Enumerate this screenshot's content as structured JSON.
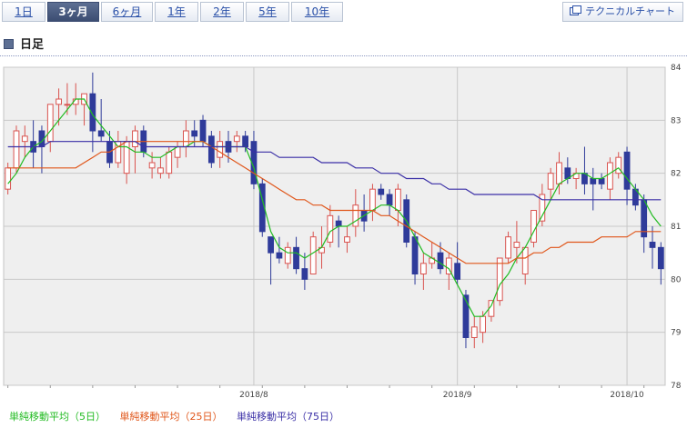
{
  "tabs": [
    {
      "label": "1日",
      "active": false
    },
    {
      "label": "3ヶ月",
      "active": true
    },
    {
      "label": "6ヶ月",
      "active": false
    },
    {
      "label": "1年",
      "active": false
    },
    {
      "label": "2年",
      "active": false
    },
    {
      "label": "5年",
      "active": false
    },
    {
      "label": "10年",
      "active": false
    }
  ],
  "technical_chart_button": "テクニカルチャート",
  "section_title": "日足",
  "legend": {
    "ma5": "単純移動平均（5日）",
    "ma25": "単純移動平均（25日）",
    "ma75": "単純移動平均（75日）"
  },
  "colors": {
    "up": "#d9534f",
    "down": "#2f3b9a",
    "ma5": "#22bb22",
    "ma25": "#e0561a",
    "ma75": "#3a2fa6",
    "active_tab": "#4a5a80",
    "plot_bg": "#efefef"
  },
  "chart_data": {
    "type": "candlestick",
    "title": "",
    "xlabel": "",
    "ylabel": "",
    "ylim": [
      78,
      84
    ],
    "yticks": [
      78,
      79,
      80,
      81,
      82,
      83,
      84
    ],
    "xtick_labels": [
      {
        "label": "2018/8",
        "index": 29
      },
      {
        "label": "2018/9",
        "index": 53
      },
      {
        "label": "2018/10",
        "index": 73
      }
    ],
    "ohlc": [
      [
        81.7,
        82.2,
        81.6,
        82.1
      ],
      [
        82.1,
        82.9,
        82.0,
        82.8
      ],
      [
        82.6,
        82.9,
        82.3,
        82.7
      ],
      [
        82.6,
        83.0,
        82.1,
        82.4
      ],
      [
        82.8,
        82.9,
        82.0,
        82.5
      ],
      [
        82.6,
        83.3,
        82.4,
        83.3
      ],
      [
        83.3,
        83.6,
        82.9,
        83.4
      ],
      [
        83.3,
        83.7,
        83.1,
        83.3
      ],
      [
        83.3,
        83.7,
        83.1,
        83.4
      ],
      [
        83.3,
        83.5,
        82.9,
        83.5
      ],
      [
        83.5,
        83.9,
        82.4,
        82.8
      ],
      [
        82.8,
        83.4,
        82.6,
        82.7
      ],
      [
        82.6,
        82.8,
        82.1,
        82.2
      ],
      [
        82.2,
        82.8,
        82.1,
        82.6
      ],
      [
        82.0,
        82.7,
        81.8,
        82.6
      ],
      [
        82.5,
        82.9,
        82.0,
        82.8
      ],
      [
        82.8,
        82.9,
        82.3,
        82.4
      ],
      [
        82.1,
        82.4,
        81.9,
        82.2
      ],
      [
        82.0,
        82.3,
        81.9,
        82.1
      ],
      [
        82.0,
        82.5,
        81.9,
        82.4
      ],
      [
        82.3,
        82.6,
        82.1,
        82.5
      ],
      [
        82.5,
        83.0,
        82.3,
        82.8
      ],
      [
        82.8,
        83.0,
        82.5,
        82.7
      ],
      [
        83.0,
        83.1,
        82.5,
        82.6
      ],
      [
        82.7,
        82.8,
        82.1,
        82.2
      ],
      [
        82.3,
        82.8,
        82.1,
        82.6
      ],
      [
        82.6,
        82.8,
        82.2,
        82.4
      ],
      [
        82.6,
        82.8,
        82.4,
        82.7
      ],
      [
        82.7,
        82.8,
        82.4,
        82.5
      ],
      [
        82.6,
        82.8,
        81.7,
        81.8
      ],
      [
        81.8,
        81.9,
        80.8,
        80.9
      ],
      [
        80.8,
        80.8,
        79.9,
        80.5
      ],
      [
        80.5,
        80.8,
        80.3,
        80.4
      ],
      [
        80.3,
        80.7,
        80.2,
        80.6
      ],
      [
        80.6,
        80.8,
        80.1,
        80.2
      ],
      [
        80.2,
        80.5,
        79.8,
        80.0
      ],
      [
        80.1,
        80.9,
        80.1,
        80.8
      ],
      [
        80.5,
        81.0,
        80.2,
        80.6
      ],
      [
        80.7,
        81.4,
        80.6,
        81.2
      ],
      [
        81.1,
        81.2,
        80.6,
        81.0
      ],
      [
        80.7,
        81.0,
        80.5,
        80.8
      ],
      [
        81.0,
        81.7,
        80.8,
        81.4
      ],
      [
        81.3,
        81.6,
        80.9,
        81.1
      ],
      [
        81.3,
        81.8,
        81.1,
        81.7
      ],
      [
        81.7,
        81.8,
        81.5,
        81.6
      ],
      [
        81.6,
        81.7,
        81.2,
        81.4
      ],
      [
        81.3,
        81.8,
        81.0,
        81.7
      ],
      [
        81.5,
        81.6,
        80.6,
        80.7
      ],
      [
        80.8,
        80.9,
        79.9,
        80.1
      ],
      [
        80.1,
        80.5,
        79.8,
        80.3
      ],
      [
        80.3,
        80.7,
        80.2,
        80.4
      ],
      [
        80.5,
        80.7,
        80.1,
        80.2
      ],
      [
        80.1,
        80.5,
        79.8,
        80.4
      ],
      [
        80.3,
        80.7,
        79.9,
        80.0
      ],
      [
        79.7,
        79.8,
        78.7,
        78.9
      ],
      [
        78.9,
        79.3,
        78.7,
        79.1
      ],
      [
        79.0,
        79.4,
        78.8,
        79.3
      ],
      [
        79.3,
        79.6,
        79.2,
        79.6
      ],
      [
        79.6,
        80.4,
        79.5,
        80.4
      ],
      [
        80.4,
        80.9,
        80.3,
        80.8
      ],
      [
        80.6,
        81.1,
        80.3,
        80.7
      ],
      [
        80.1,
        80.6,
        79.9,
        80.6
      ],
      [
        80.7,
        81.3,
        80.6,
        81.3
      ],
      [
        81.1,
        81.8,
        81.0,
        81.6
      ],
      [
        81.7,
        82.1,
        81.5,
        82.0
      ],
      [
        81.8,
        82.4,
        81.6,
        82.2
      ],
      [
        82.1,
        82.3,
        81.8,
        81.9
      ],
      [
        81.9,
        82.1,
        81.7,
        82.0
      ],
      [
        82.0,
        82.5,
        81.6,
        81.8
      ],
      [
        81.9,
        82.1,
        81.3,
        81.8
      ],
      [
        81.9,
        82.0,
        81.7,
        81.8
      ],
      [
        81.7,
        82.3,
        81.5,
        82.2
      ],
      [
        82.0,
        82.4,
        81.9,
        82.3
      ],
      [
        82.4,
        82.5,
        81.4,
        81.7
      ],
      [
        81.7,
        81.8,
        81.3,
        81.4
      ],
      [
        81.5,
        81.6,
        80.5,
        80.8
      ],
      [
        80.7,
        81.0,
        80.2,
        80.6
      ],
      [
        80.6,
        80.7,
        79.9,
        80.2
      ]
    ],
    "series": [
      {
        "name": "単純移動平均（5日）",
        "color": "#22bb22",
        "values": [
          81.8,
          82.0,
          82.3,
          82.5,
          82.6,
          82.8,
          83.0,
          83.2,
          83.4,
          83.4,
          83.1,
          82.9,
          82.7,
          82.5,
          82.5,
          82.4,
          82.4,
          82.3,
          82.3,
          82.4,
          82.5,
          82.5,
          82.6,
          82.6,
          82.5,
          82.5,
          82.5,
          82.5,
          82.5,
          82.1,
          81.5,
          80.9,
          80.6,
          80.5,
          80.5,
          80.4,
          80.5,
          80.6,
          80.9,
          81.0,
          81.0,
          81.1,
          81.2,
          81.3,
          81.4,
          81.4,
          81.3,
          81.1,
          80.8,
          80.5,
          80.4,
          80.3,
          80.2,
          79.9,
          79.6,
          79.3,
          79.3,
          79.5,
          79.9,
          80.1,
          80.4,
          80.6,
          80.9,
          81.2,
          81.5,
          81.8,
          81.9,
          82.0,
          82.0,
          81.9,
          81.9,
          82.0,
          82.1,
          81.9,
          81.7,
          81.5,
          81.2,
          81.0
        ]
      },
      {
        "name": "単純移動平均（25日）",
        "color": "#e0561a",
        "values": [
          82.1,
          82.1,
          82.1,
          82.1,
          82.1,
          82.1,
          82.1,
          82.1,
          82.1,
          82.2,
          82.3,
          82.4,
          82.4,
          82.5,
          82.6,
          82.6,
          82.6,
          82.6,
          82.6,
          82.6,
          82.6,
          82.6,
          82.6,
          82.6,
          82.5,
          82.4,
          82.3,
          82.2,
          82.1,
          82.0,
          81.9,
          81.8,
          81.7,
          81.6,
          81.5,
          81.5,
          81.4,
          81.4,
          81.3,
          81.3,
          81.3,
          81.3,
          81.3,
          81.3,
          81.2,
          81.2,
          81.1,
          81.0,
          80.9,
          80.8,
          80.7,
          80.6,
          80.5,
          80.4,
          80.3,
          80.3,
          80.3,
          80.3,
          80.3,
          80.3,
          80.4,
          80.4,
          80.5,
          80.5,
          80.6,
          80.6,
          80.7,
          80.7,
          80.7,
          80.7,
          80.8,
          80.8,
          80.8,
          80.8,
          80.9,
          80.9,
          80.9,
          80.9
        ]
      },
      {
        "name": "単純移動平均（75日）",
        "color": "#3a2fa6",
        "values": [
          82.5,
          82.5,
          82.5,
          82.5,
          82.5,
          82.6,
          82.6,
          82.6,
          82.6,
          82.6,
          82.6,
          82.6,
          82.6,
          82.6,
          82.6,
          82.6,
          82.5,
          82.5,
          82.5,
          82.5,
          82.5,
          82.5,
          82.5,
          82.5,
          82.5,
          82.5,
          82.5,
          82.5,
          82.5,
          82.4,
          82.4,
          82.4,
          82.3,
          82.3,
          82.3,
          82.3,
          82.3,
          82.2,
          82.2,
          82.2,
          82.2,
          82.1,
          82.1,
          82.1,
          82.0,
          82.0,
          82.0,
          81.9,
          81.9,
          81.9,
          81.8,
          81.8,
          81.7,
          81.7,
          81.7,
          81.6,
          81.6,
          81.6,
          81.6,
          81.6,
          81.6,
          81.6,
          81.6,
          81.5,
          81.5,
          81.5,
          81.5,
          81.5,
          81.5,
          81.5,
          81.5,
          81.5,
          81.5,
          81.5,
          81.5,
          81.5,
          81.5,
          81.5
        ]
      }
    ]
  }
}
